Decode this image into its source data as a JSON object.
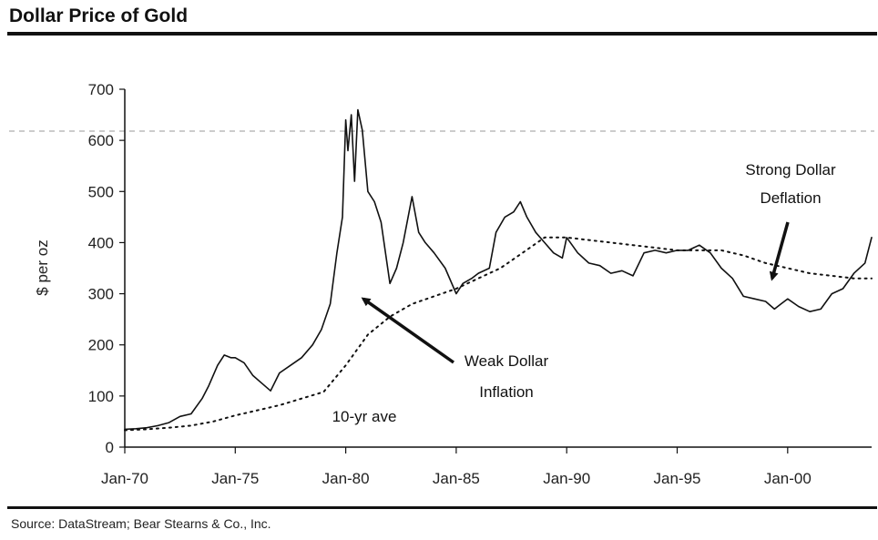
{
  "header": {
    "title": "Dollar Price of Gold"
  },
  "footer": {
    "source": "Source: DataStream; Bear Stearns & Co., Inc."
  },
  "chart_data": {
    "type": "line",
    "title": "Dollar Price of Gold",
    "xlabel": "",
    "ylabel": "$ per oz",
    "ylim": [
      0,
      700
    ],
    "yticks": [
      0,
      100,
      200,
      300,
      400,
      500,
      600,
      700
    ],
    "ytick_labels": [
      "0",
      "100",
      "200",
      "300",
      "400",
      "500",
      "600",
      "700"
    ],
    "xlim": [
      1970,
      2003.8
    ],
    "xticks": [
      1970,
      1975,
      1980,
      1985,
      1990,
      1995,
      2000
    ],
    "xtick_labels": [
      "Jan-70",
      "Jan-75",
      "Jan-80",
      "Jan-85",
      "Jan-90",
      "Jan-95",
      "Jan-00"
    ],
    "grid": false,
    "series": [
      {
        "name": "",
        "style": "solid",
        "x": [
          1970,
          1970.5,
          1971,
          1971.5,
          1972,
          1972.5,
          1973,
          1973.5,
          1973.8,
          1974.2,
          1974.5,
          1974.8,
          1975,
          1975.4,
          1975.8,
          1976.2,
          1976.6,
          1977,
          1977.5,
          1978,
          1978.5,
          1978.9,
          1979.3,
          1979.6,
          1979.85,
          1980.0,
          1980.1,
          1980.25,
          1980.4,
          1980.55,
          1980.75,
          1981.0,
          1981.3,
          1981.6,
          1982.0,
          1982.3,
          1982.6,
          1983.0,
          1983.3,
          1983.6,
          1984.0,
          1984.5,
          1985.0,
          1985.3,
          1985.7,
          1986.0,
          1986.5,
          1986.8,
          1987.2,
          1987.6,
          1987.9,
          1988.2,
          1988.6,
          1989.0,
          1989.4,
          1989.8,
          1990.0,
          1990.5,
          1991,
          1991.5,
          1992,
          1992.5,
          1993,
          1993.5,
          1994,
          1994.5,
          1995,
          1995.5,
          1996,
          1996.5,
          1997,
          1997.5,
          1998,
          1998.5,
          1999,
          1999.4,
          1999.7,
          2000,
          2000.5,
          2001,
          2001.5,
          2002,
          2002.5,
          2003,
          2003.5,
          2003.8
        ],
        "y": [
          35,
          36,
          38,
          42,
          48,
          60,
          65,
          95,
          120,
          160,
          180,
          175,
          175,
          165,
          140,
          125,
          110,
          145,
          160,
          175,
          200,
          230,
          280,
          380,
          450,
          640,
          580,
          650,
          520,
          660,
          620,
          500,
          480,
          440,
          320,
          350,
          400,
          490,
          420,
          400,
          380,
          350,
          300,
          320,
          330,
          340,
          350,
          420,
          450,
          460,
          480,
          450,
          420,
          400,
          380,
          370,
          410,
          380,
          360,
          355,
          340,
          345,
          335,
          380,
          385,
          380,
          385,
          385,
          395,
          380,
          350,
          330,
          295,
          290,
          285,
          270,
          280,
          290,
          275,
          265,
          270,
          300,
          310,
          340,
          360,
          410
        ]
      },
      {
        "name": "10-yr ave",
        "style": "dotted",
        "x": [
          1970,
          1971,
          1972,
          1973,
          1974,
          1975,
          1976,
          1977,
          1978,
          1979,
          1980,
          1981,
          1982,
          1983,
          1984,
          1985,
          1986,
          1987,
          1988,
          1989,
          1990,
          1991,
          1992,
          1993,
          1994,
          1995,
          1996,
          1997,
          1998,
          1999,
          2000,
          2001,
          2002,
          2003,
          2003.8
        ],
        "y": [
          33,
          35,
          38,
          42,
          50,
          62,
          72,
          82,
          95,
          108,
          160,
          220,
          255,
          280,
          295,
          310,
          330,
          350,
          380,
          410,
          410,
          405,
          400,
          395,
          390,
          385,
          385,
          385,
          375,
          360,
          350,
          340,
          335,
          330,
          330
        ]
      }
    ],
    "annotations": [
      {
        "text_lines": [
          "Weak Dollar",
          "Inflation"
        ],
        "arrow_to": [
          1980.8,
          290
        ]
      },
      {
        "text_lines": [
          "Strong Dollar",
          "Deflation"
        ],
        "arrow_to": [
          1999.3,
          330
        ]
      },
      {
        "text_lines": [
          "10-yr ave"
        ],
        "arrow_to": null
      }
    ]
  }
}
